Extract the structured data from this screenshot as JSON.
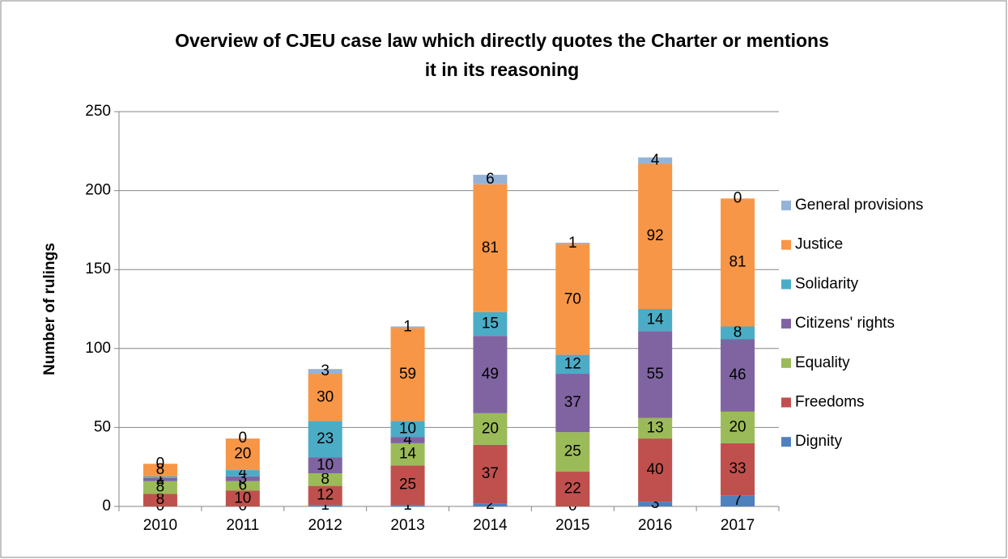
{
  "chart_data": {
    "type": "stacked_bar",
    "title": [
      "Overview of CJEU case law which directly quotes the Charter or mentions",
      "it in its reasoning"
    ],
    "y_label": "Number of rulings",
    "categories": [
      "2010",
      "2011",
      "2012",
      "2013",
      "2014",
      "2015",
      "2016",
      "2017"
    ],
    "series": [
      {
        "name": "Dignity",
        "color": "#4f81bd",
        "values": [
          0,
          0,
          1,
          1,
          2,
          0,
          3,
          7
        ]
      },
      {
        "name": "Freedoms",
        "color": "#c0504d",
        "values": [
          8,
          10,
          12,
          25,
          37,
          22,
          40,
          33
        ]
      },
      {
        "name": "Equality",
        "color": "#9bbb59",
        "values": [
          8,
          6,
          8,
          14,
          20,
          25,
          13,
          20
        ]
      },
      {
        "name": "Citizens' rights",
        "color": "#8064a2",
        "values": [
          2,
          3,
          10,
          4,
          49,
          37,
          55,
          46
        ]
      },
      {
        "name": "Solidarity",
        "color": "#4bacc6",
        "values": [
          1,
          4,
          23,
          10,
          15,
          12,
          14,
          8
        ]
      },
      {
        "name": "Justice",
        "color": "#f79646",
        "values": [
          8,
          20,
          30,
          59,
          81,
          70,
          92,
          81
        ]
      },
      {
        "name": "General provisions",
        "color": "#95b3d7",
        "values": [
          0,
          0,
          3,
          1,
          6,
          1,
          4,
          0
        ]
      }
    ],
    "ylim": [
      0,
      250
    ],
    "yticks": [
      0,
      50,
      100,
      150,
      200,
      250
    ],
    "grid": true,
    "legend": "right"
  }
}
